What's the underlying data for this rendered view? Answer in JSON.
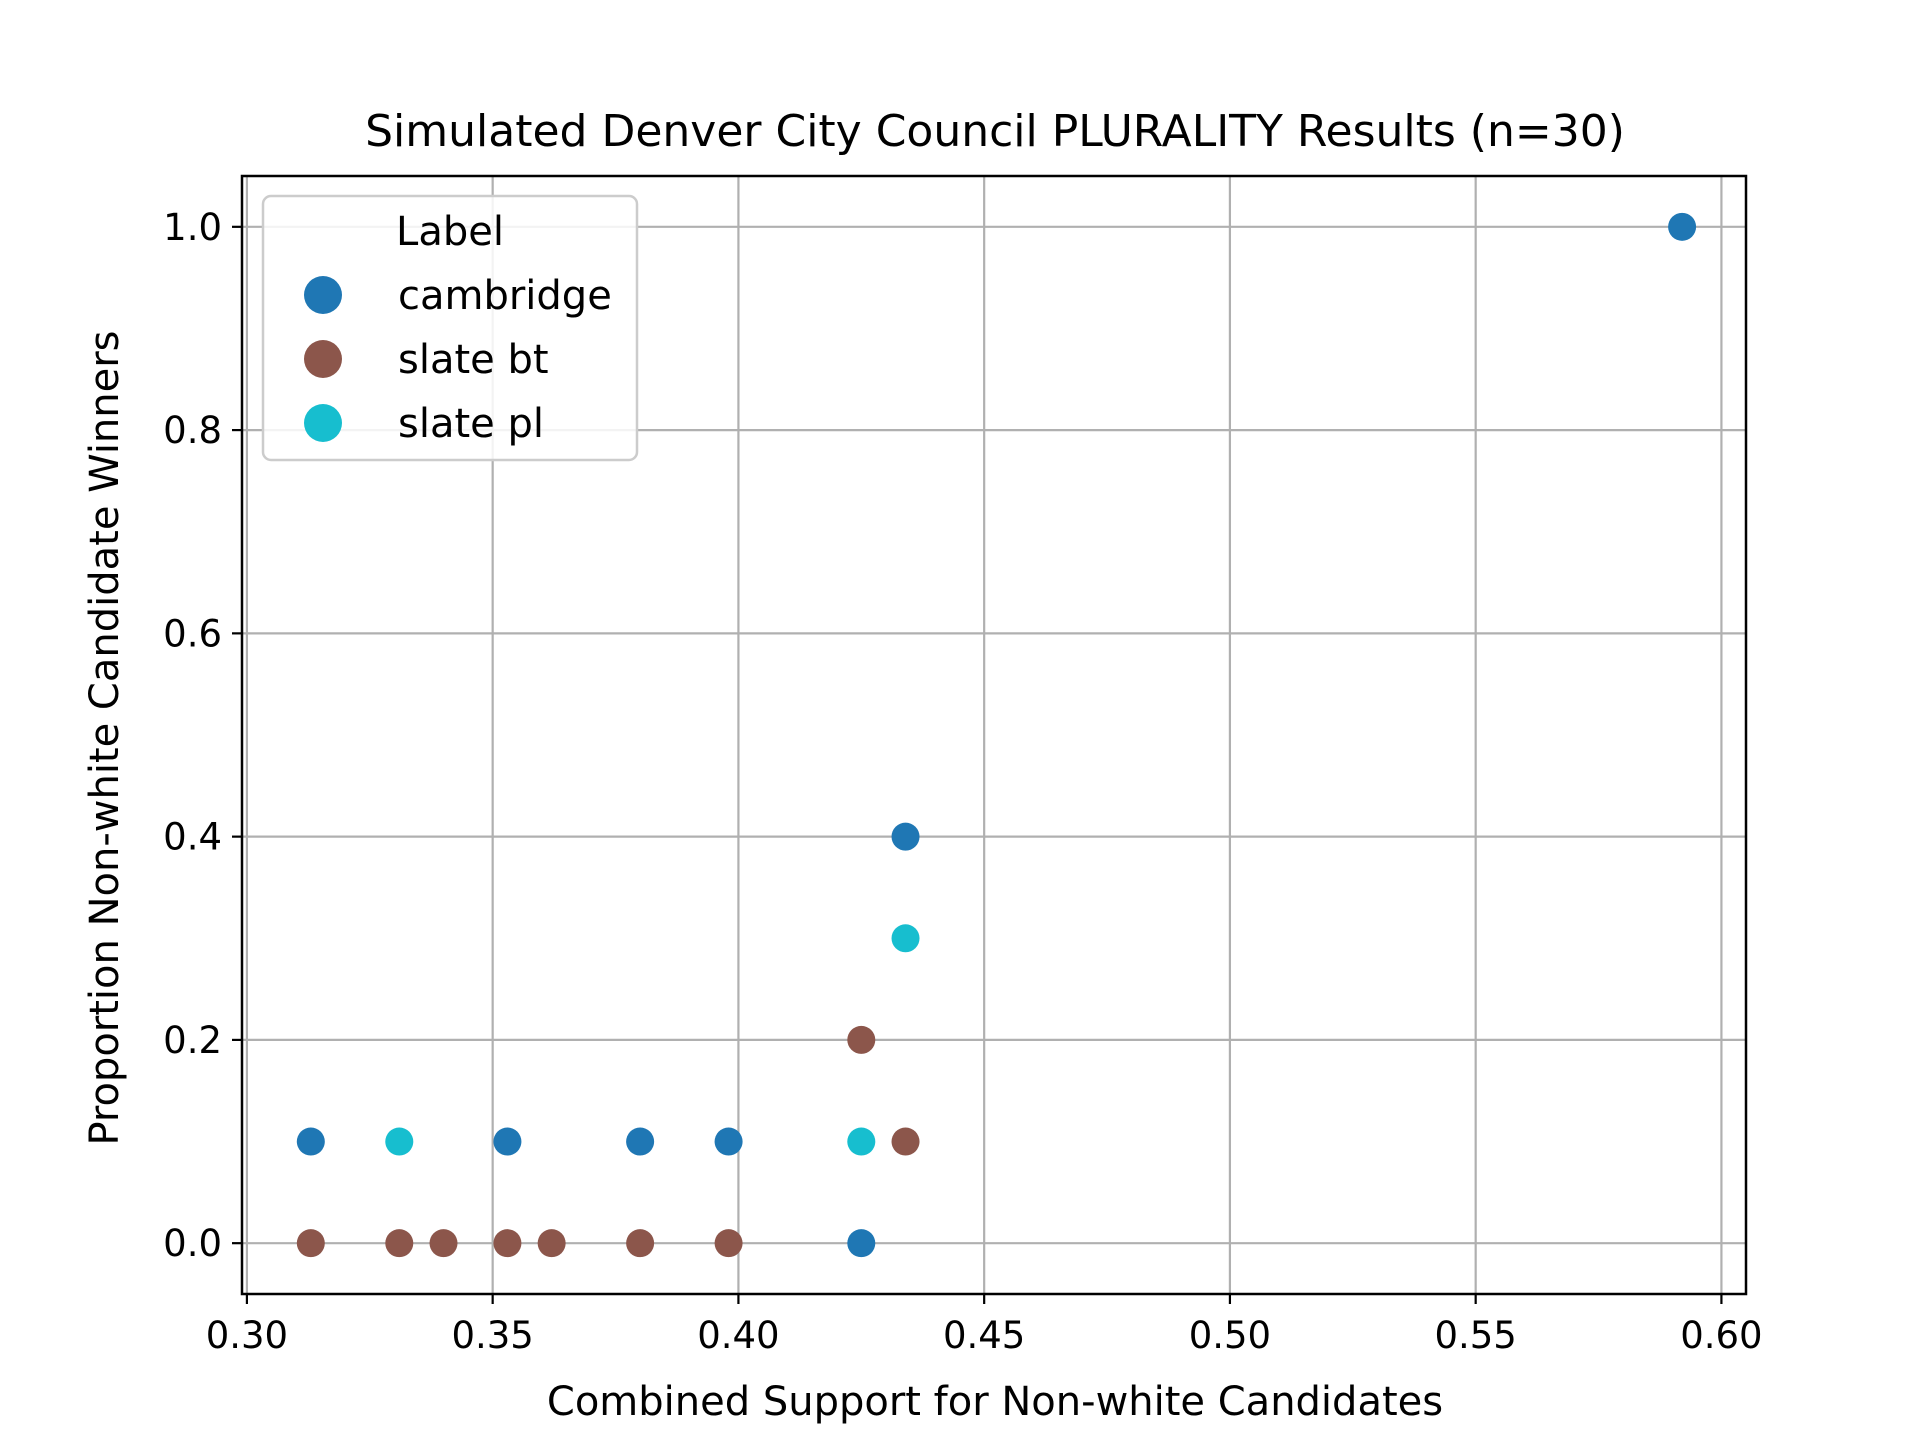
{
  "chart_data": {
    "type": "scatter",
    "title": "Simulated Denver City Council PLURALITY Results (n=30)",
    "xlabel": "Combined Support for Non-white Candidates",
    "ylabel": "Proportion Non-white Candidate Winners",
    "xlim": [
      0.299,
      0.605
    ],
    "ylim": [
      -0.05,
      1.05
    ],
    "xticks": [
      0.3,
      0.35,
      0.4,
      0.45,
      0.5,
      0.55,
      0.6
    ],
    "xtick_labels": [
      "0.30",
      "0.35",
      "0.40",
      "0.45",
      "0.50",
      "0.55",
      "0.60"
    ],
    "yticks": [
      0.0,
      0.2,
      0.4,
      0.6,
      0.8,
      1.0
    ],
    "ytick_labels": [
      "0.0",
      "0.2",
      "0.4",
      "0.6",
      "0.8",
      "1.0"
    ],
    "grid": true,
    "legend": {
      "title": "Label",
      "placement": "top-left"
    },
    "series": [
      {
        "name": "cambridge",
        "color": "#1f77b4",
        "points": [
          {
            "x": 0.313,
            "y": 0.1
          },
          {
            "x": 0.353,
            "y": 0.1
          },
          {
            "x": 0.38,
            "y": 0.1
          },
          {
            "x": 0.398,
            "y": 0.1
          },
          {
            "x": 0.425,
            "y": 0.0
          },
          {
            "x": 0.434,
            "y": 0.4
          },
          {
            "x": 0.592,
            "y": 1.0
          }
        ]
      },
      {
        "name": "slate bt",
        "color": "#8c564b",
        "points": [
          {
            "x": 0.313,
            "y": 0.0
          },
          {
            "x": 0.331,
            "y": 0.0
          },
          {
            "x": 0.34,
            "y": 0.0
          },
          {
            "x": 0.353,
            "y": 0.0
          },
          {
            "x": 0.362,
            "y": 0.0
          },
          {
            "x": 0.38,
            "y": 0.0
          },
          {
            "x": 0.398,
            "y": 0.0
          },
          {
            "x": 0.425,
            "y": 0.2
          },
          {
            "x": 0.434,
            "y": 0.1
          }
        ]
      },
      {
        "name": "slate pl",
        "color": "#17becf",
        "points": [
          {
            "x": 0.331,
            "y": 0.1
          },
          {
            "x": 0.425,
            "y": 0.1
          },
          {
            "x": 0.434,
            "y": 0.3
          }
        ]
      }
    ]
  }
}
